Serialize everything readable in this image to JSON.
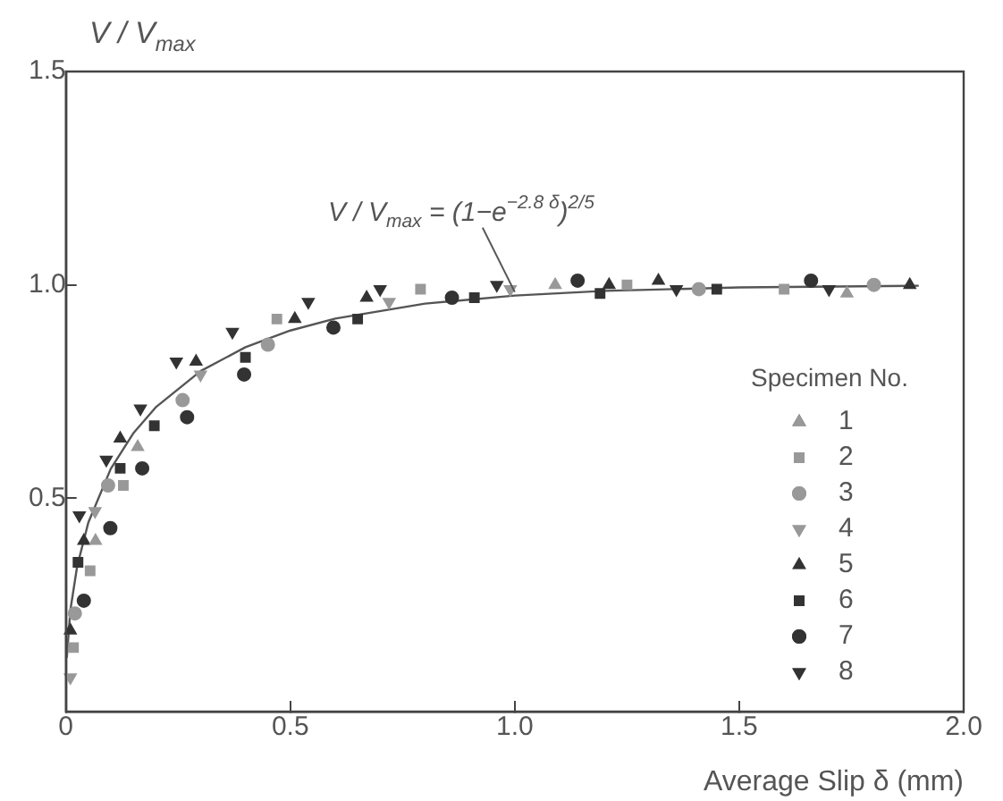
{
  "chart_data": {
    "type": "scatter",
    "xlabel": "Average Slip δ (mm)",
    "ylabel": "V / V$_{max}$",
    "legend_title": "Specimen No.",
    "legend": "bottom right",
    "grid": false,
    "xlim": [
      0,
      2
    ],
    "xticks": [
      0,
      0.5,
      {
        "value": 1,
        "label": "1.0"
      },
      1.5,
      {
        "value": 2,
        "label": "2.0"
      }
    ],
    "ylim": [
      0,
      1.5
    ],
    "yticks": [
      0.5,
      {
        "value": 1,
        "label": "1.0"
      },
      1.5
    ],
    "annotations": [
      {
        "text": "V / V$_{max}$ = (1−e$^{−2.8 δ}$)$^{2/5}$",
        "x": 1.0,
        "y": 0.975
      }
    ],
    "series": [
      {
        "name": "1",
        "color": "#999999",
        "marker": "triangle",
        "x": [
          0.066,
          0.16,
          1.09,
          1.74
        ],
        "values": [
          0.4,
          0.62,
          1.0,
          0.98
        ]
      },
      {
        "name": "2",
        "color": "#999999",
        "marker": "square",
        "x": [
          0.017,
          0.054,
          0.128,
          0.47,
          0.79,
          1.25,
          1.6
        ],
        "values": [
          0.15,
          0.33,
          0.53,
          0.92,
          0.99,
          1.0,
          0.99
        ]
      },
      {
        "name": "3",
        "color": "#999999",
        "marker": "circle",
        "x": [
          0.02,
          0.094,
          0.26,
          0.45,
          1.41,
          1.8
        ],
        "values": [
          0.23,
          0.53,
          0.73,
          0.86,
          0.99,
          1.0
        ]
      },
      {
        "name": "4",
        "color": "#999999",
        "marker": "triangle-down",
        "x": [
          0.01,
          0.065,
          0.3,
          0.72,
          0.99
        ],
        "values": [
          0.08,
          0.47,
          0.79,
          0.96,
          0.99
        ]
      },
      {
        "name": "5",
        "color": "#333333",
        "marker": "triangle",
        "x": [
          0.01,
          0.04,
          0.121,
          0.29,
          0.51,
          0.67,
          1.21,
          1.32,
          1.88
        ],
        "values": [
          0.19,
          0.4,
          0.64,
          0.82,
          0.92,
          0.97,
          1.0,
          1.01,
          1.0
        ]
      },
      {
        "name": "6",
        "color": "#333333",
        "marker": "square",
        "x": [
          0.027,
          0.121,
          0.197,
          0.4,
          0.65,
          0.91,
          1.19,
          1.45
        ],
        "values": [
          0.35,
          0.57,
          0.67,
          0.83,
          0.92,
          0.97,
          0.98,
          0.99
        ]
      },
      {
        "name": "7",
        "color": "#333333",
        "marker": "circle",
        "x": [
          0.04,
          0.099,
          0.17,
          0.27,
          0.397,
          0.596,
          0.86,
          1.14,
          1.66
        ],
        "values": [
          0.26,
          0.43,
          0.57,
          0.69,
          0.79,
          0.9,
          0.97,
          1.01,
          1.01
        ]
      },
      {
        "name": "8",
        "color": "#333333",
        "marker": "triangle-down",
        "x": [
          0.03,
          0.09,
          0.166,
          0.246,
          0.371,
          0.54,
          0.7,
          0.96,
          1.36,
          1.7
        ],
        "values": [
          0.46,
          0.59,
          0.71,
          0.82,
          0.89,
          0.96,
          0.99,
          1.0,
          0.99,
          0.99
        ]
      },
      {
        "type": "line",
        "color": "#555555",
        "marker": "none",
        "line_style": "solid",
        "x": [
          0.002,
          0.01,
          0.025,
          0.05,
          0.1,
          0.15,
          0.2,
          0.3,
          0.4,
          0.5,
          0.6,
          0.8,
          1.0,
          1.2,
          1.5,
          1.9
        ],
        "values": [
          0.126,
          0.238,
          0.34,
          0.443,
          0.569,
          0.652,
          0.713,
          0.798,
          0.854,
          0.893,
          0.921,
          0.956,
          0.975,
          0.986,
          0.994,
          0.998
        ]
      }
    ]
  }
}
